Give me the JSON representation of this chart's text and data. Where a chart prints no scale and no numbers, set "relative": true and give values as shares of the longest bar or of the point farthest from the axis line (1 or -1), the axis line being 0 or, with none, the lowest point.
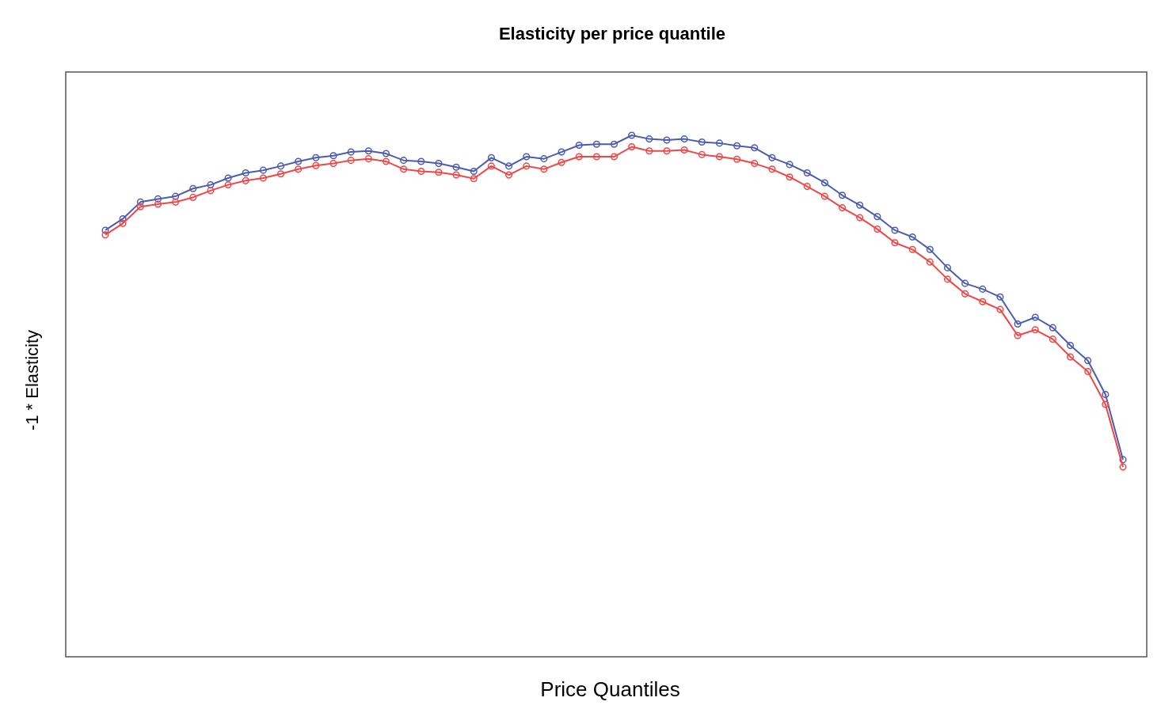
{
  "chart_data": {
    "type": "line",
    "title": "Elasticity per price quantile",
    "xlabel": "Price Quantiles",
    "ylabel": "-1 * Elasticity",
    "relative": true,
    "marker": "circle",
    "line_style": "solid",
    "categories": [
      null,
      null,
      null,
      null,
      null,
      null,
      null,
      null,
      null,
      null,
      null,
      null,
      null,
      null,
      null,
      null,
      null,
      null,
      null,
      null,
      null,
      null,
      null,
      null,
      null,
      null,
      null,
      null,
      null,
      null,
      null,
      null,
      null,
      null,
      null,
      null,
      null,
      null,
      null,
      null,
      null,
      null,
      null,
      null,
      null,
      null,
      null,
      null,
      null,
      null,
      null,
      null,
      null,
      null,
      null,
      null,
      null,
      null,
      null
    ],
    "series": [
      {
        "color": "#4b5cb0",
        "values": [
          0.818,
          0.84,
          0.872,
          0.878,
          0.883,
          0.898,
          0.905,
          0.918,
          0.928,
          0.933,
          0.941,
          0.95,
          0.957,
          0.961,
          0.968,
          0.97,
          0.965,
          0.952,
          0.95,
          0.946,
          0.939,
          0.931,
          0.957,
          0.941,
          0.959,
          0.955,
          0.968,
          0.981,
          0.983,
          0.983,
          1,
          0.993,
          0.991,
          0.993,
          0.987,
          0.985,
          0.98,
          0.976,
          0.957,
          0.944,
          0.928,
          0.909,
          0.885,
          0.866,
          0.844,
          0.818,
          0.805,
          0.781,
          0.746,
          0.716,
          0.705,
          0.69,
          0.638,
          0.651,
          0.631,
          0.597,
          0.568,
          0.503,
          0.378
        ]
      },
      {
        "color": "#f04646",
        "values": [
          0.809,
          0.831,
          0.863,
          0.868,
          0.872,
          0.881,
          0.894,
          0.905,
          0.913,
          0.918,
          0.926,
          0.935,
          0.942,
          0.946,
          0.952,
          0.955,
          0.95,
          0.935,
          0.931,
          0.929,
          0.924,
          0.917,
          0.941,
          0.924,
          0.941,
          0.935,
          0.948,
          0.959,
          0.959,
          0.959,
          0.978,
          0.97,
          0.97,
          0.972,
          0.963,
          0.959,
          0.954,
          0.946,
          0.935,
          0.92,
          0.902,
          0.883,
          0.861,
          0.842,
          0.82,
          0.794,
          0.781,
          0.757,
          0.724,
          0.696,
          0.681,
          0.666,
          0.616,
          0.627,
          0.609,
          0.575,
          0.547,
          0.484,
          0.364
        ]
      }
    ]
  }
}
